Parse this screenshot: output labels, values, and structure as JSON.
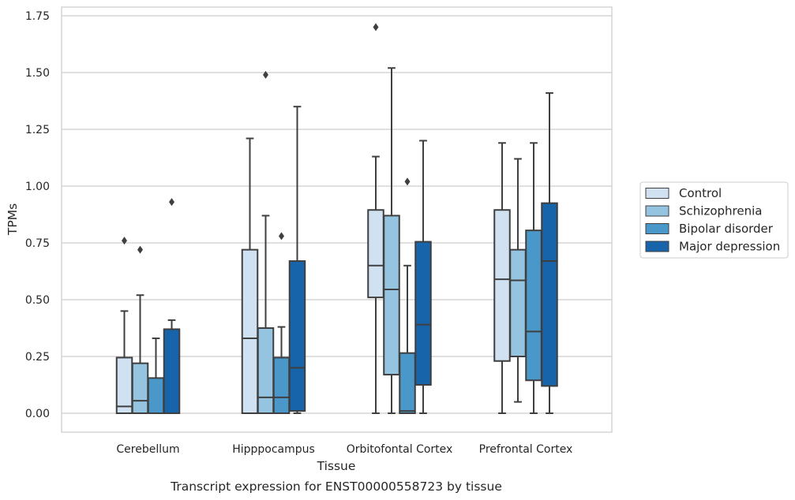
{
  "chart_data": {
    "type": "box",
    "xlabel": "Tissue",
    "ylabel": "TPMs",
    "caption": "Transcript expression for ENST00000558723 by tissue",
    "ylim": [
      -0.08,
      1.8
    ],
    "yticks": [
      0.0,
      0.25,
      0.5,
      0.75,
      1.0,
      1.25,
      1.5,
      1.75
    ],
    "ytick_labels": [
      "0.00",
      "0.25",
      "0.50",
      "0.75",
      "1.00",
      "1.25",
      "1.50",
      "1.75"
    ],
    "categories": [
      "Cerebellum",
      "Hipppocampus",
      "Orbitofontal Cortex",
      "Prefrontal Cortex"
    ],
    "grid": "horizontal",
    "legend_position": "right",
    "series": [
      {
        "name": "Control",
        "color": "#d0e1f2",
        "boxes": [
          {
            "whislo": 0.0,
            "q1": 0.0,
            "med": 0.03,
            "q3": 0.245,
            "whishi": 0.45,
            "fliers": [
              0.76
            ]
          },
          {
            "whislo": 0.0,
            "q1": 0.0,
            "med": 0.33,
            "q3": 0.72,
            "whishi": 1.21,
            "fliers": []
          },
          {
            "whislo": 0.0,
            "q1": 0.51,
            "med": 0.65,
            "q3": 0.895,
            "whishi": 1.13,
            "fliers": [
              1.7
            ]
          },
          {
            "whislo": 0.0,
            "q1": 0.23,
            "med": 0.59,
            "q3": 0.895,
            "whishi": 1.19,
            "fliers": []
          }
        ]
      },
      {
        "name": "Schizophrenia",
        "color": "#94c4df",
        "boxes": [
          {
            "whislo": 0.0,
            "q1": 0.0,
            "med": 0.055,
            "q3": 0.22,
            "whishi": 0.52,
            "fliers": [
              0.72
            ]
          },
          {
            "whislo": 0.0,
            "q1": 0.0,
            "med": 0.07,
            "q3": 0.375,
            "whishi": 0.87,
            "fliers": [
              1.49
            ]
          },
          {
            "whislo": 0.0,
            "q1": 0.17,
            "med": 0.545,
            "q3": 0.87,
            "whishi": 1.52,
            "fliers": []
          },
          {
            "whislo": 0.05,
            "q1": 0.25,
            "med": 0.585,
            "q3": 0.72,
            "whishi": 1.12,
            "fliers": []
          }
        ]
      },
      {
        "name": "Bipolar disorder",
        "color": "#4a98c9",
        "boxes": [
          {
            "whislo": 0.0,
            "q1": 0.0,
            "med": 0.0,
            "q3": 0.155,
            "whishi": 0.33,
            "fliers": []
          },
          {
            "whislo": 0.0,
            "q1": 0.0,
            "med": 0.07,
            "q3": 0.245,
            "whishi": 0.38,
            "fliers": [
              0.78
            ]
          },
          {
            "whislo": 0.0,
            "q1": 0.0,
            "med": 0.01,
            "q3": 0.265,
            "whishi": 0.65,
            "fliers": [
              1.02
            ]
          },
          {
            "whislo": 0.0,
            "q1": 0.145,
            "med": 0.36,
            "q3": 0.805,
            "whishi": 1.19,
            "fliers": []
          }
        ]
      },
      {
        "name": "Major depression",
        "color": "#1764ab",
        "boxes": [
          {
            "whislo": 0.0,
            "q1": 0.0,
            "med": 0.0,
            "q3": 0.37,
            "whishi": 0.41,
            "fliers": [
              0.93
            ]
          },
          {
            "whislo": 0.0,
            "q1": 0.01,
            "med": 0.2,
            "q3": 0.67,
            "whishi": 1.35,
            "fliers": []
          },
          {
            "whislo": 0.0,
            "q1": 0.125,
            "med": 0.39,
            "q3": 0.755,
            "whishi": 1.2,
            "fliers": []
          },
          {
            "whislo": 0.0,
            "q1": 0.12,
            "med": 0.67,
            "q3": 0.925,
            "whishi": 1.41,
            "fliers": []
          }
        ]
      }
    ]
  }
}
